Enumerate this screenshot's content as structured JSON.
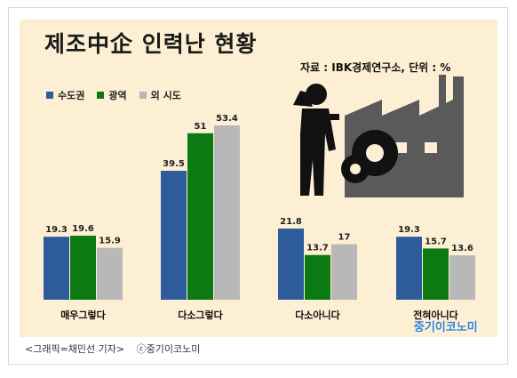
{
  "header": {
    "title": "제조中企 인력난 현황",
    "source": "자료 : IBK경제연구소, 단위 : %"
  },
  "colors": {
    "background": "#fcefd3",
    "capital": "#2e5c9a",
    "metro": "#0b7a12",
    "other": "#b8b8b8",
    "brand": "#2f7fd0"
  },
  "chart_data": {
    "type": "bar",
    "categories": [
      "매우그렇다",
      "다소그렇다",
      "다소아니다",
      "전혀아니다"
    ],
    "series": [
      {
        "name": "수도권",
        "values": [
          19.3,
          39.5,
          21.8,
          19.3
        ]
      },
      {
        "name": "광역",
        "values": [
          19.6,
          51,
          13.7,
          15.7
        ]
      },
      {
        "name": "외 시도",
        "values": [
          15.9,
          53.4,
          17,
          13.6
        ]
      }
    ],
    "ylim": [
      0,
      60
    ],
    "grid": false,
    "legend": "top-left"
  },
  "illustration": {
    "icon": "worker-factory-gears-icon"
  },
  "footer": {
    "brand": "중기이코노미",
    "credit": "<그래픽=채민선 기자>",
    "copyright": "ⓒ중기이코노미"
  }
}
